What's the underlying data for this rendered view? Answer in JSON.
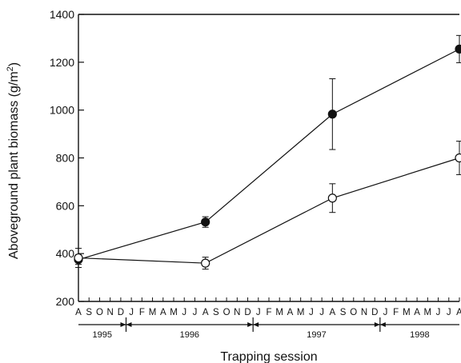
{
  "chart_data": {
    "type": "line",
    "xlabel": "Trapping session",
    "ylabel": "Aboveground plant biomass (g/m2)",
    "ylabel_parts": {
      "main": "Aboveground plant biomass (g/m",
      "sup": "2",
      "close": ")"
    },
    "ylim": [
      200,
      1400
    ],
    "yticks": [
      200,
      400,
      600,
      800,
      1000,
      1200,
      1400
    ],
    "months": [
      "A",
      "S",
      "O",
      "N",
      "D",
      "J",
      "F",
      "M",
      "A",
      "M",
      "J",
      "J",
      "A",
      "S",
      "O",
      "N",
      "D",
      "J",
      "F",
      "M",
      "A",
      "M",
      "J",
      "J",
      "A",
      "S",
      "O",
      "N",
      "D",
      "J",
      "F",
      "M",
      "A",
      "M",
      "J",
      "J",
      "A"
    ],
    "years": [
      "1995",
      "1996",
      "1997",
      "1998"
    ],
    "year_breaks": [
      5,
      17,
      29
    ],
    "grid": false,
    "series": [
      {
        "marker": "filled",
        "points": [
          {
            "month_index": 0,
            "y": 375,
            "err": 20
          },
          {
            "month_index": 12,
            "y": 532,
            "err": 22
          },
          {
            "month_index": 24,
            "y": 983,
            "err": 148
          },
          {
            "month_index": 36,
            "y": 1255,
            "err": 57
          }
        ]
      },
      {
        "marker": "open",
        "points": [
          {
            "month_index": 0,
            "y": 382,
            "err": 40
          },
          {
            "month_index": 12,
            "y": 360,
            "err": 25
          },
          {
            "month_index": 24,
            "y": 632,
            "err": 60
          },
          {
            "month_index": 36,
            "y": 800,
            "err": 70
          }
        ]
      }
    ]
  }
}
